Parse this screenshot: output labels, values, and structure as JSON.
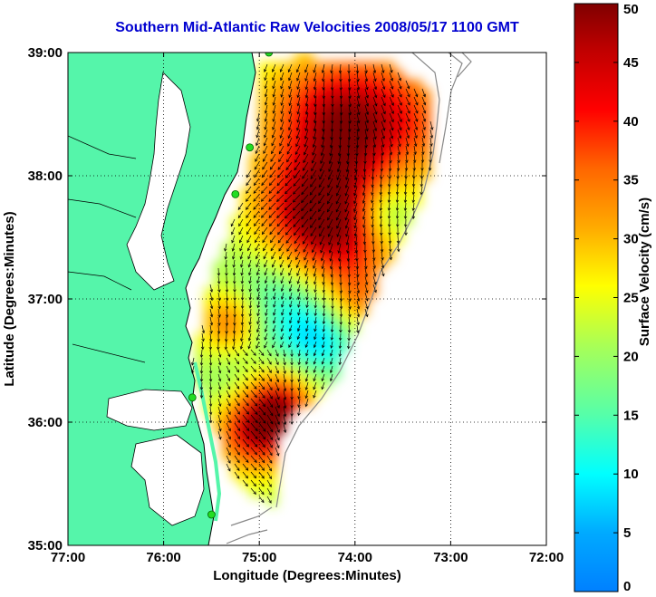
{
  "title": "Southern Mid-Atlantic Raw Velocities 2008/05/17 1100 GMT",
  "x_axis": {
    "label": "Longitude (Degrees:Minutes)",
    "ticks": [
      {
        "value": -77,
        "label": "77:00"
      },
      {
        "value": -76,
        "label": "76:00"
      },
      {
        "value": -75,
        "label": "75:00"
      },
      {
        "value": -74,
        "label": "74:00"
      },
      {
        "value": -73,
        "label": "73:00"
      },
      {
        "value": -72,
        "label": "72:00"
      }
    ],
    "range": [
      -77,
      -72
    ]
  },
  "y_axis": {
    "label": "Latitude (Degrees:Minutes)",
    "ticks": [
      {
        "value": 39,
        "label": "39:00"
      },
      {
        "value": 38,
        "label": "38:00"
      },
      {
        "value": 37,
        "label": "37:00"
      },
      {
        "value": 36,
        "label": "36:00"
      },
      {
        "value": 35,
        "label": "35:00"
      }
    ],
    "range": [
      35,
      39
    ]
  },
  "colorbar": {
    "label": "Surface Velocity (cm/s)",
    "range": [
      0,
      50
    ],
    "ticks": [
      {
        "value": 0,
        "label": "0"
      },
      {
        "value": 5,
        "label": "5"
      },
      {
        "value": 10,
        "label": "10"
      },
      {
        "value": 15,
        "label": "15"
      },
      {
        "value": 20,
        "label": "20"
      },
      {
        "value": 25,
        "label": "25"
      },
      {
        "value": 30,
        "label": "30"
      },
      {
        "value": 35,
        "label": "35"
      },
      {
        "value": 40,
        "label": "40"
      },
      {
        "value": 45,
        "label": "45"
      },
      {
        "value": 50,
        "label": "50"
      }
    ],
    "colormap": "jet"
  },
  "colors": {
    "land": "#55f5aa",
    "water": "#ffffff",
    "coastline": "#000000",
    "bathymetry": "#888888",
    "station": "#22dd22",
    "arrows": "#000000",
    "title": "#0000d0"
  },
  "chart_data": {
    "type": "heatmap",
    "grid": "dotted",
    "stations": [
      {
        "lon": -74.9,
        "lat": 39.0
      },
      {
        "lon": -75.1,
        "lat": 38.23
      },
      {
        "lon": -75.25,
        "lat": 37.85
      },
      {
        "lon": -75.7,
        "lat": 36.2
      },
      {
        "lon": -75.5,
        "lat": 35.25
      }
    ]
  }
}
